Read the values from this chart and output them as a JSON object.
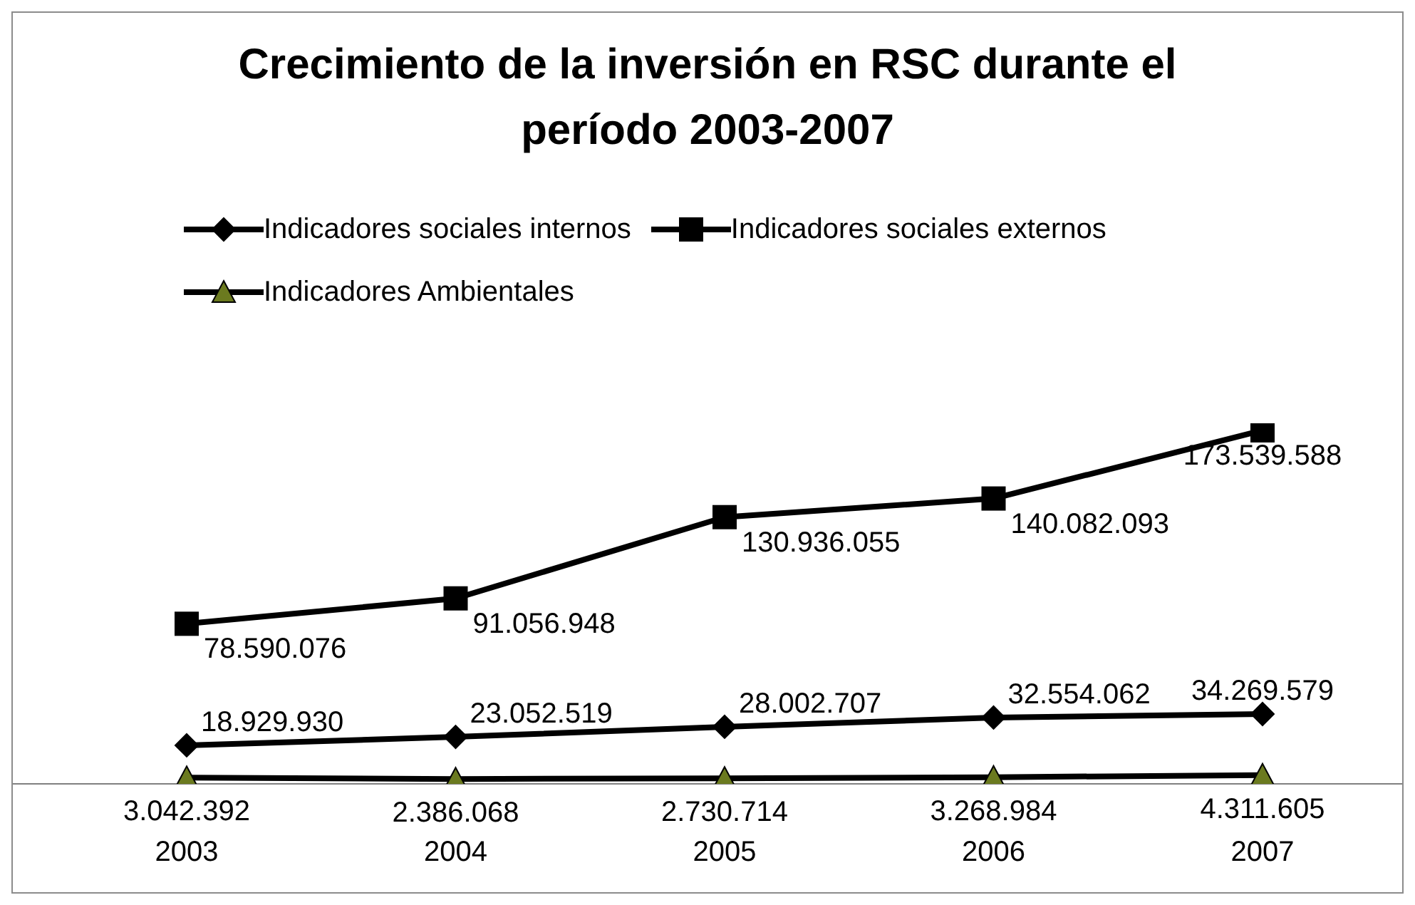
{
  "chart_data": {
    "type": "line",
    "title": "Crecimiento de la inversión en RSC durante el período 2003-2007",
    "categories": [
      "2003",
      "2004",
      "2005",
      "2006",
      "2007"
    ],
    "legend": "top",
    "series": [
      {
        "name": "Indicadores sociales internos",
        "color": "#000000",
        "marker": "diamond",
        "values": [
          18929930,
          23052519,
          28002707,
          32554062,
          34269579
        ],
        "value_labels": [
          "18.929.930",
          "23.052.519",
          "28.002.707",
          "32.554.062",
          "34.269.579"
        ]
      },
      {
        "name": "Indicadores sociales externos",
        "color": "#000000",
        "marker": "square",
        "values": [
          78590076,
          91056948,
          130936055,
          140082093,
          173539588
        ],
        "value_labels": [
          "78.590.076",
          "91.056.948",
          "130.936.055",
          "140.082.093",
          "173.539.588"
        ]
      },
      {
        "name": "Indicadores Ambientales",
        "color": "#000000",
        "marker": "triangle",
        "values": [
          3042392,
          2386068,
          2730714,
          3268984,
          4311605
        ],
        "value_labels": [
          "3.042.392",
          "2.386.068",
          "2.730.714",
          "3.268.984",
          "4.311.605"
        ]
      }
    ]
  }
}
